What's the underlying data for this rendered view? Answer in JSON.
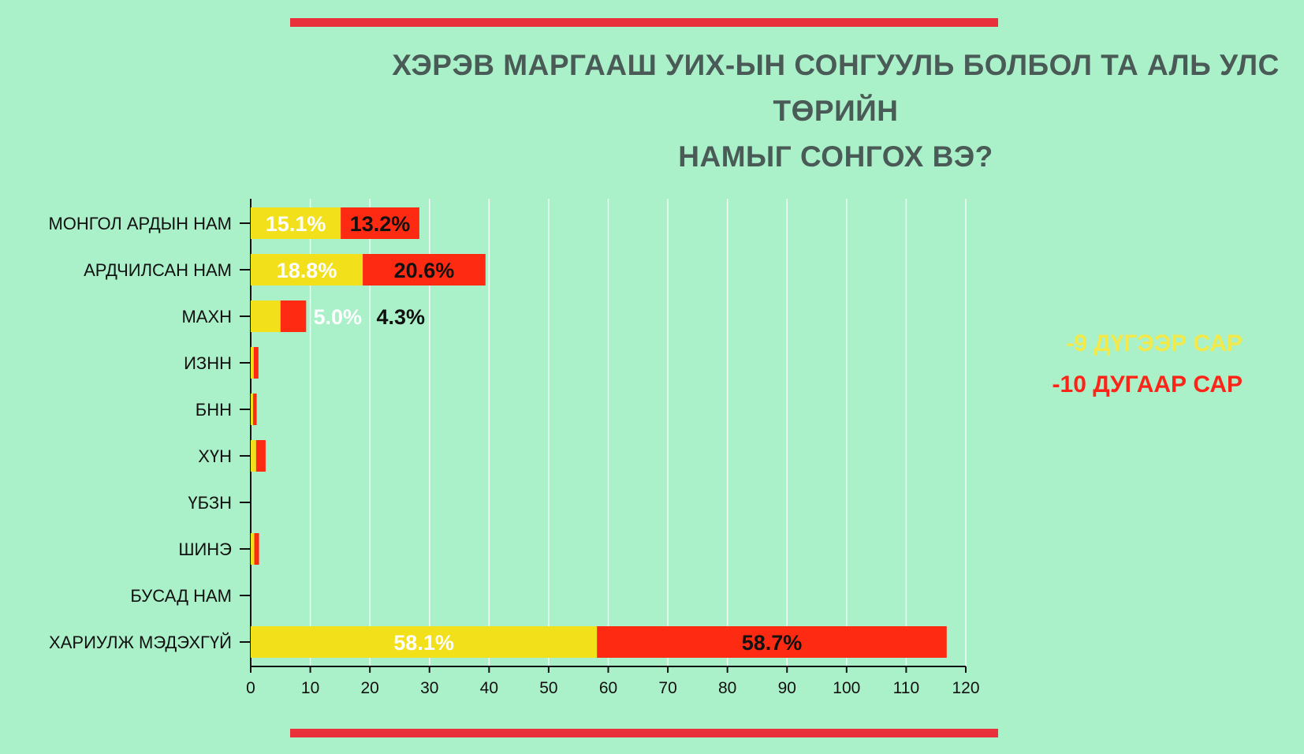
{
  "title_line1": "ХЭРЭВ МАРГААШ УИХ-ЫН СОНГУУЛЬ БОЛБОЛ ТА АЛЬ УЛС ТӨРИЙН",
  "title_line2": "НАМЫГ СОНГОХ ВЭ?",
  "legend": {
    "sep": "-9 ДҮГЭЭР САР",
    "oct": "-10 ДУГААР САР"
  },
  "colors": {
    "background": "#aaf0c9",
    "sep": "#f2e01a",
    "oct": "#ff2a12",
    "accent_bar": "#e8313a",
    "title": "#4a5a56"
  },
  "chart_data": {
    "type": "bar",
    "orientation": "horizontal",
    "stacked": true,
    "categories": [
      "МОНГОЛ АРДЫН НАМ",
      "АРДЧИЛСАН НАМ",
      "МАХН",
      "ИЗНН",
      "БНН",
      "ХҮН",
      "ҮБЗН",
      "ШИНЭ",
      "БУСАД НАМ",
      "ХАРИУЛЖ МЭДЭХГҮЙ"
    ],
    "series": [
      {
        "name": "-9 ДҮГЭЭР САР",
        "values": [
          15.1,
          18.8,
          5.0,
          0.5,
          0.4,
          0.9,
          0,
          0.6,
          0,
          58.1
        ],
        "labels": [
          "15.1%",
          "18.8%",
          "5.0%",
          "",
          "",
          "",
          "",
          "",
          "",
          "58.1%"
        ]
      },
      {
        "name": "-10 ДУГААР САР",
        "values": [
          13.2,
          20.6,
          4.3,
          0.8,
          0.6,
          1.6,
          0,
          0.8,
          0,
          58.7
        ],
        "labels": [
          "13.2%",
          "20.6%",
          "4.3%",
          "",
          "",
          "",
          "",
          "",
          "",
          "58.7%"
        ]
      }
    ],
    "xticks": [
      0,
      10,
      20,
      30,
      40,
      50,
      60,
      70,
      80,
      90,
      100,
      110,
      120
    ],
    "xlim": [
      0,
      120
    ],
    "grid": true,
    "legend_position": "right"
  }
}
